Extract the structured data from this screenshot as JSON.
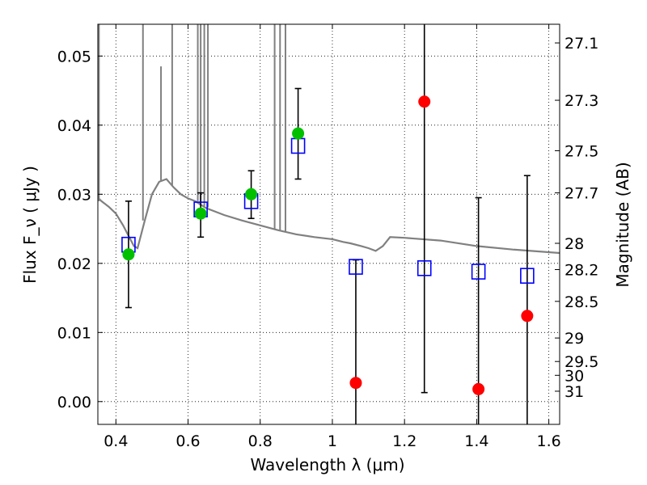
{
  "chart_data": {
    "type": "scatter",
    "xlabel": "Wavelength  λ (μm)",
    "ylabel": "Flux  F_ν  ( μJy )",
    "y2label": "Magnitude (AB)",
    "xlim": [
      0.35,
      1.63
    ],
    "ylim": [
      -0.0033,
      0.0546
    ],
    "grid": true,
    "x_ticks": [
      0.4,
      0.6,
      0.8,
      1.0,
      1.2,
      1.4,
      1.6
    ],
    "x_tick_labels": [
      "0.4",
      "0.6",
      "0.8",
      "1",
      "1.2",
      "1.4",
      "1.6"
    ],
    "y_ticks": [
      0.0,
      0.01,
      0.02,
      0.03,
      0.04,
      0.05
    ],
    "y_tick_labels": [
      "0.00",
      "0.01",
      "0.02",
      "0.03",
      "0.04",
      "0.05"
    ],
    "y2_ticks": [
      {
        "label": "27.1",
        "flux": 0.0519
      },
      {
        "label": "27.3",
        "flux": 0.0436
      },
      {
        "label": "27.5",
        "flux": 0.0363
      },
      {
        "label": "27.7",
        "flux": 0.0302
      },
      {
        "label": "28",
        "flux": 0.0229
      },
      {
        "label": "28.2",
        "flux": 0.0191
      },
      {
        "label": "28.5",
        "flux": 0.0145
      },
      {
        "label": "29",
        "flux": 0.0092
      },
      {
        "label": "29.5",
        "flux": 0.0058
      },
      {
        "label": "30",
        "flux": 0.0038
      },
      {
        "label": "31",
        "flux": 0.0015
      }
    ],
    "series": [
      {
        "marker": "circle",
        "color_note": "green/red circles: observed fluxes with error bars",
        "points": [
          {
            "x": 0.435,
            "y": 0.0213,
            "yerr_low": 0.0136,
            "yerr_high": 0.029,
            "color": "#00c000"
          },
          {
            "x": 0.635,
            "y": 0.0272,
            "yerr_low": 0.0238,
            "yerr_high": 0.0302,
            "color": "#00c000"
          },
          {
            "x": 0.775,
            "y": 0.03,
            "yerr_low": 0.0265,
            "yerr_high": 0.0334,
            "color": "#00c000"
          },
          {
            "x": 0.905,
            "y": 0.0388,
            "yerr_low": 0.0322,
            "yerr_high": 0.0453,
            "color": "#00c000"
          },
          {
            "x": 1.065,
            "y": 0.0027,
            "yerr_low": -0.0033,
            "yerr_high": 0.0205,
            "color": "#ff0000"
          },
          {
            "x": 1.255,
            "y": 0.0434,
            "yerr_low": 0.0013,
            "yerr_high": 0.0546,
            "color": "#ff0000"
          },
          {
            "x": 1.405,
            "y": 0.0018,
            "yerr_low": -0.0033,
            "yerr_high": 0.0295,
            "color": "#ff0000"
          },
          {
            "x": 1.54,
            "y": 0.0124,
            "yerr_low": -0.0033,
            "yerr_high": 0.0327,
            "color": "#ff0000"
          }
        ]
      },
      {
        "marker": "square",
        "color": "#0000ff",
        "points": [
          {
            "x": 0.435,
            "y": 0.0227
          },
          {
            "x": 0.635,
            "y": 0.0278
          },
          {
            "x": 0.775,
            "y": 0.029
          },
          {
            "x": 0.905,
            "y": 0.037
          },
          {
            "x": 1.065,
            "y": 0.0195
          },
          {
            "x": 1.255,
            "y": 0.0193
          },
          {
            "x": 1.405,
            "y": 0.0188
          },
          {
            "x": 1.54,
            "y": 0.0182
          }
        ]
      },
      {
        "type": "line",
        "color": "#808080",
        "x": [
          0.35,
          0.36,
          0.38,
          0.4,
          0.42,
          0.44,
          0.45,
          0.46,
          0.48,
          0.5,
          0.52,
          0.54,
          0.56,
          0.58,
          0.6,
          0.62,
          0.65,
          0.7,
          0.75,
          0.8,
          0.85,
          0.9,
          0.95,
          1.0,
          1.03,
          1.05,
          1.08,
          1.1,
          1.12,
          1.14,
          1.16,
          1.2,
          1.3,
          1.4,
          1.5,
          1.63
        ],
        "values": [
          0.0295,
          0.029,
          0.0282,
          0.0272,
          0.0255,
          0.0235,
          0.0225,
          0.0222,
          0.0262,
          0.03,
          0.0318,
          0.0322,
          0.031,
          0.03,
          0.0294,
          0.029,
          0.028,
          0.027,
          0.0262,
          0.0255,
          0.0248,
          0.0242,
          0.0238,
          0.0235,
          0.0231,
          0.0229,
          0.0225,
          0.0222,
          0.0218,
          0.0225,
          0.0238,
          0.0237,
          0.0233,
          0.0225,
          0.022,
          0.0215
        ]
      }
    ]
  }
}
